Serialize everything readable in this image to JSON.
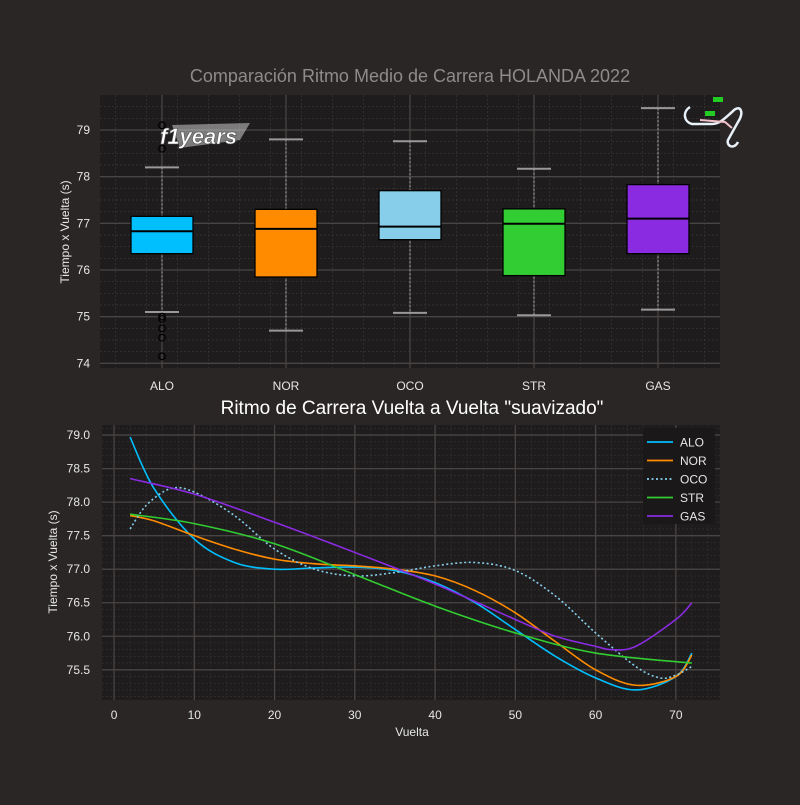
{
  "chart_data": [
    {
      "type": "box",
      "title": "Comparación Ritmo Medio de Carrera HOLANDA 2022",
      "xlabel": "",
      "ylabel": "Tiempo x Vuelta (s)",
      "ylim": [
        73.9,
        79.75
      ],
      "yticks": [
        74,
        75,
        76,
        77,
        78,
        79
      ],
      "grid": true,
      "logo_text": "f1years",
      "categories": [
        "ALO",
        "NOR",
        "OCO",
        "STR",
        "GAS"
      ],
      "boxes": [
        {
          "name": "ALO",
          "color": "#00bfff",
          "whisker_low": 75.1,
          "q1": 76.35,
          "median": 76.83,
          "q3": 77.15,
          "whisker_high": 78.2,
          "outliers": [
            79.1,
            78.6,
            75.0,
            74.95,
            74.75,
            74.55,
            74.15
          ]
        },
        {
          "name": "NOR",
          "color": "#ff8c00",
          "whisker_low": 74.7,
          "q1": 75.85,
          "median": 76.88,
          "q3": 77.3,
          "whisker_high": 78.8,
          "outliers": []
        },
        {
          "name": "OCO",
          "color": "#87ceeb",
          "whisker_low": 75.08,
          "q1": 76.65,
          "median": 76.93,
          "q3": 77.7,
          "whisker_high": 78.76,
          "outliers": []
        },
        {
          "name": "STR",
          "color": "#32cd32",
          "whisker_low": 75.03,
          "q1": 75.88,
          "median": 76.99,
          "q3": 77.31,
          "whisker_high": 78.17,
          "outliers": []
        },
        {
          "name": "GAS",
          "color": "#8a2be2",
          "whisker_low": 75.15,
          "q1": 76.35,
          "median": 77.1,
          "q3": 77.83,
          "whisker_high": 79.47,
          "outliers": []
        }
      ]
    },
    {
      "type": "line",
      "title": "Ritmo de Carrera Vuelta a Vuelta \"suavizado\"",
      "xlabel": "Vuelta",
      "ylabel": "Tiempo x Vuelta (s)",
      "xlim": [
        -1.5,
        75.5
      ],
      "ylim": [
        75.05,
        79.15
      ],
      "xticks": [
        0,
        10,
        20,
        30,
        40,
        50,
        60,
        70
      ],
      "yticks": [
        "75.5",
        "76.0",
        "76.5",
        "77.0",
        "77.5",
        "78.0",
        "78.5",
        "79.0"
      ],
      "grid": true,
      "legend": "top-right",
      "series": [
        {
          "name": "ALO",
          "color": "#00bfff",
          "style": "solid",
          "x": [
            2,
            5,
            10,
            15,
            20,
            25,
            30,
            35,
            40,
            45,
            50,
            55,
            60,
            65,
            70,
            72
          ],
          "y": [
            78.97,
            78.2,
            77.45,
            77.1,
            77.0,
            77.02,
            77.03,
            76.98,
            76.8,
            76.5,
            76.1,
            75.7,
            75.38,
            75.2,
            75.4,
            75.75
          ]
        },
        {
          "name": "NOR",
          "color": "#ff8c00",
          "style": "solid",
          "x": [
            2,
            5,
            10,
            15,
            20,
            25,
            30,
            35,
            40,
            45,
            50,
            55,
            60,
            65,
            70,
            72
          ],
          "y": [
            77.8,
            77.72,
            77.5,
            77.3,
            77.15,
            77.08,
            77.05,
            77.0,
            76.9,
            76.68,
            76.35,
            75.92,
            75.5,
            75.27,
            75.4,
            75.72
          ]
        },
        {
          "name": "OCO",
          "color": "#87ceeb",
          "style": "dotted",
          "x": [
            2,
            4,
            7,
            10,
            15,
            20,
            25,
            30,
            35,
            40,
            45,
            50,
            55,
            60,
            65,
            68,
            70,
            72
          ],
          "y": [
            77.6,
            77.95,
            78.2,
            78.15,
            77.8,
            77.3,
            77.0,
            76.9,
            76.95,
            77.05,
            77.1,
            76.98,
            76.6,
            76.05,
            75.55,
            75.38,
            75.42,
            75.55
          ]
        },
        {
          "name": "STR",
          "color": "#32cd32",
          "style": "solid",
          "x": [
            2,
            10,
            20,
            30,
            40,
            50,
            60,
            72
          ],
          "y": [
            77.82,
            77.68,
            77.38,
            76.92,
            76.45,
            76.05,
            75.75,
            75.6
          ]
        },
        {
          "name": "GAS",
          "color": "#8a2be2",
          "style": "solid",
          "x": [
            2,
            10,
            20,
            30,
            40,
            50,
            55,
            60,
            62,
            65,
            70,
            72
          ],
          "y": [
            78.35,
            78.12,
            77.7,
            77.25,
            76.78,
            76.25,
            76.0,
            75.85,
            75.8,
            75.85,
            76.25,
            76.5
          ]
        }
      ]
    }
  ]
}
